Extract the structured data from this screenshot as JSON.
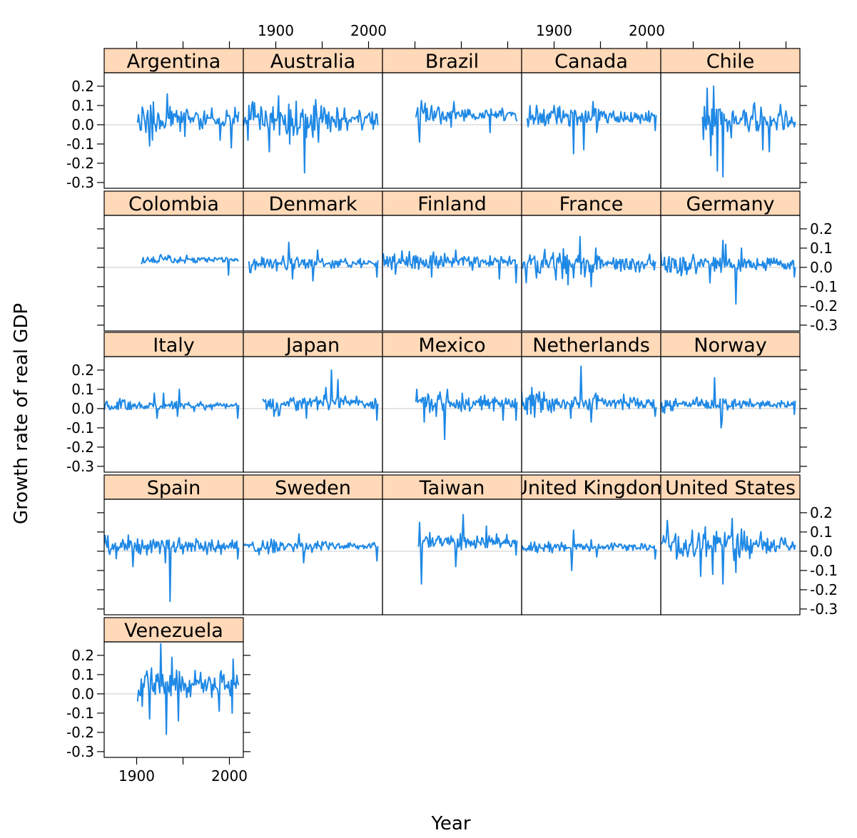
{
  "chart_data": {
    "type": "line",
    "layout": "lattice small multiples, 5 columns x 5 rows",
    "xlabel": "Year",
    "ylabel": "Growth rate of real GDP",
    "xlim": [
      1865,
      2015
    ],
    "ylim": [
      -0.33,
      0.27
    ],
    "x_ticks": [
      1900,
      1950,
      2000
    ],
    "x_tick_labels": [
      "1900",
      "",
      "2000"
    ],
    "y_ticks": [
      -0.3,
      -0.2,
      -0.1,
      0.0,
      0.1,
      0.2
    ],
    "y_tick_labels": [
      "-0.3",
      "-0.2",
      "-0.1",
      "0.0",
      "0.1",
      "0.2"
    ],
    "reference_line_y": 0.0,
    "colors": {
      "line": "#1e88e5",
      "strip": "#ffd9b8",
      "reference": "#dcdcdc",
      "border": "#000000"
    },
    "panels": [
      {
        "name": "Argentina",
        "start": 1901,
        "end": 2010,
        "mean": 0.03,
        "noise": 0.06,
        "shocks": [
          [
            1914,
            -0.11
          ],
          [
            1917,
            -0.08
          ],
          [
            1933,
            0.16
          ],
          [
            1952,
            -0.06
          ],
          [
            1990,
            -0.08
          ],
          [
            2002,
            -0.12
          ],
          [
            2006,
            0.09
          ]
        ]
      },
      {
        "name": "Australia",
        "start": 1865,
        "end": 2010,
        "mean": 0.03,
        "noise": 0.07,
        "shocks": [
          [
            1875,
            0.12
          ],
          [
            1893,
            -0.14
          ],
          [
            1903,
            0.15
          ],
          [
            1915,
            -0.1
          ],
          [
            1931,
            -0.25
          ],
          [
            1943,
            0.13
          ],
          [
            1946,
            -0.09
          ]
        ]
      },
      {
        "name": "Brazil",
        "start": 1901,
        "end": 2010,
        "mean": 0.05,
        "noise": 0.04,
        "shocks": [
          [
            1905,
            -0.09
          ],
          [
            1942,
            0.12
          ],
          [
            1981,
            -0.04
          ]
        ]
      },
      {
        "name": "Canada",
        "start": 1871,
        "end": 2010,
        "mean": 0.04,
        "noise": 0.04,
        "shocks": [
          [
            1900,
            0.1
          ],
          [
            1921,
            -0.15
          ],
          [
            1932,
            -0.13
          ],
          [
            1942,
            0.12
          ],
          [
            1946,
            -0.04
          ],
          [
            2009,
            -0.03
          ]
        ]
      },
      {
        "name": "Chile",
        "start": 1910,
        "end": 2010,
        "mean": 0.03,
        "noise": 0.07,
        "shocks": [
          [
            1915,
            0.19
          ],
          [
            1919,
            -0.16
          ],
          [
            1922,
            0.2
          ],
          [
            1926,
            -0.24
          ],
          [
            1932,
            -0.27
          ],
          [
            1975,
            -0.13
          ],
          [
            1982,
            -0.14
          ]
        ]
      },
      {
        "name": "Colombia",
        "start": 1905,
        "end": 2010,
        "mean": 0.04,
        "noise": 0.015,
        "shocks": [
          [
            1935,
            0.05
          ],
          [
            1999,
            -0.04
          ]
        ]
      },
      {
        "name": "Denmark",
        "start": 1871,
        "end": 2010,
        "mean": 0.02,
        "noise": 0.025,
        "shocks": [
          [
            1914,
            0.13
          ],
          [
            1918,
            -0.06
          ],
          [
            1940,
            -0.07
          ],
          [
            1945,
            0.09
          ],
          [
            2009,
            -0.05
          ]
        ]
      },
      {
        "name": "Finland",
        "start": 1865,
        "end": 2010,
        "mean": 0.03,
        "noise": 0.035,
        "shocks": [
          [
            1918,
            -0.05
          ],
          [
            1920,
            0.08
          ],
          [
            1944,
            0.09
          ],
          [
            1991,
            -0.06
          ],
          [
            2009,
            -0.08
          ]
        ]
      },
      {
        "name": "France",
        "start": 1865,
        "end": 2010,
        "mean": 0.02,
        "noise": 0.05,
        "shocks": [
          [
            1870,
            -0.08
          ],
          [
            1915,
            -0.09
          ],
          [
            1928,
            0.16
          ],
          [
            1940,
            -0.1
          ],
          [
            1945,
            0.1
          ]
        ]
      },
      {
        "name": "Germany",
        "start": 1865,
        "end": 2010,
        "mean": 0.02,
        "noise": 0.04,
        "shocks": [
          [
            1918,
            -0.08
          ],
          [
            1932,
            0.14
          ],
          [
            1935,
            0.12
          ],
          [
            1946,
            -0.19
          ],
          [
            1952,
            0.1
          ],
          [
            2009,
            -0.05
          ]
        ]
      },
      {
        "name": "Italy",
        "start": 1865,
        "end": 2010,
        "mean": 0.015,
        "noise": 0.02,
        "shocks": [
          [
            1919,
            0.08
          ],
          [
            1922,
            -0.05
          ],
          [
            1929,
            0.08
          ],
          [
            1944,
            -0.04
          ],
          [
            1946,
            0.1
          ],
          [
            2009,
            -0.05
          ]
        ]
      },
      {
        "name": "Japan",
        "start": 1886,
        "end": 2010,
        "mean": 0.03,
        "noise": 0.035,
        "shocks": [
          [
            1898,
            -0.04
          ],
          [
            1933,
            -0.05
          ],
          [
            1954,
            0.11
          ],
          [
            1960,
            0.2
          ],
          [
            1967,
            0.15
          ],
          [
            2009,
            -0.06
          ]
        ]
      },
      {
        "name": "Mexico",
        "start": 1901,
        "end": 2010,
        "mean": 0.03,
        "noise": 0.04,
        "shocks": [
          [
            1902,
            0.1
          ],
          [
            1910,
            -0.07
          ],
          [
            1932,
            -0.16
          ],
          [
            1935,
            0.1
          ],
          [
            1995,
            -0.06
          ],
          [
            2009,
            -0.06
          ]
        ]
      },
      {
        "name": "Netherlands",
        "start": 1865,
        "end": 2010,
        "mean": 0.03,
        "noise": 0.04,
        "shocks": [
          [
            1876,
            0.11
          ],
          [
            1918,
            -0.05
          ],
          [
            1929,
            0.22
          ],
          [
            1940,
            -0.07
          ],
          [
            1945,
            0.08
          ],
          [
            2009,
            -0.04
          ]
        ]
      },
      {
        "name": "Norway",
        "start": 1865,
        "end": 2010,
        "mean": 0.025,
        "noise": 0.025,
        "shocks": [
          [
            1923,
            0.16
          ],
          [
            1930,
            -0.1
          ],
          [
            1931,
            -0.07
          ],
          [
            2009,
            -0.03
          ]
        ]
      },
      {
        "name": "Spain",
        "start": 1865,
        "end": 2010,
        "mean": 0.025,
        "noise": 0.04,
        "shocks": [
          [
            1869,
            0.08
          ],
          [
            1896,
            -0.08
          ],
          [
            1931,
            -0.06
          ],
          [
            1936,
            -0.26
          ],
          [
            1946,
            0.07
          ],
          [
            2009,
            -0.04
          ]
        ]
      },
      {
        "name": "Sweden",
        "start": 1865,
        "end": 2010,
        "mean": 0.025,
        "noise": 0.025,
        "shocks": [
          [
            1925,
            0.09
          ],
          [
            1930,
            -0.06
          ],
          [
            1950,
            0.05
          ],
          [
            2009,
            -0.05
          ]
        ]
      },
      {
        "name": "Taiwan",
        "start": 1903,
        "end": 2010,
        "mean": 0.05,
        "noise": 0.035,
        "shocks": [
          [
            1905,
            0.15
          ],
          [
            1907,
            -0.17
          ],
          [
            1913,
            0.07
          ],
          [
            1944,
            -0.08
          ],
          [
            1952,
            0.19
          ],
          [
            1977,
            0.13
          ],
          [
            2009,
            -0.02
          ]
        ]
      },
      {
        "name": "United Kingdom",
        "start": 1865,
        "end": 2010,
        "mean": 0.02,
        "noise": 0.02,
        "shocks": [
          [
            1919,
            -0.1
          ],
          [
            1921,
            0.11
          ],
          [
            1940,
            0.06
          ],
          [
            1946,
            -0.03
          ],
          [
            2009,
            -0.04
          ]
        ]
      },
      {
        "name": "United States",
        "start": 1865,
        "end": 2010,
        "mean": 0.035,
        "noise": 0.06,
        "shocks": [
          [
            1872,
            0.16
          ],
          [
            1908,
            -0.13
          ],
          [
            1921,
            -0.12
          ],
          [
            1932,
            -0.17
          ],
          [
            1942,
            0.17
          ],
          [
            1946,
            -0.11
          ]
        ]
      },
      {
        "name": "Venezuela",
        "start": 1901,
        "end": 2010,
        "mean": 0.045,
        "noise": 0.07,
        "shocks": [
          [
            1914,
            -0.13
          ],
          [
            1926,
            0.26
          ],
          [
            1932,
            -0.21
          ],
          [
            1938,
            0.19
          ],
          [
            1945,
            -0.14
          ],
          [
            1989,
            -0.09
          ],
          [
            1994,
            0.1
          ],
          [
            2004,
            0.18
          ],
          [
            2003,
            -0.1
          ]
        ]
      }
    ]
  }
}
